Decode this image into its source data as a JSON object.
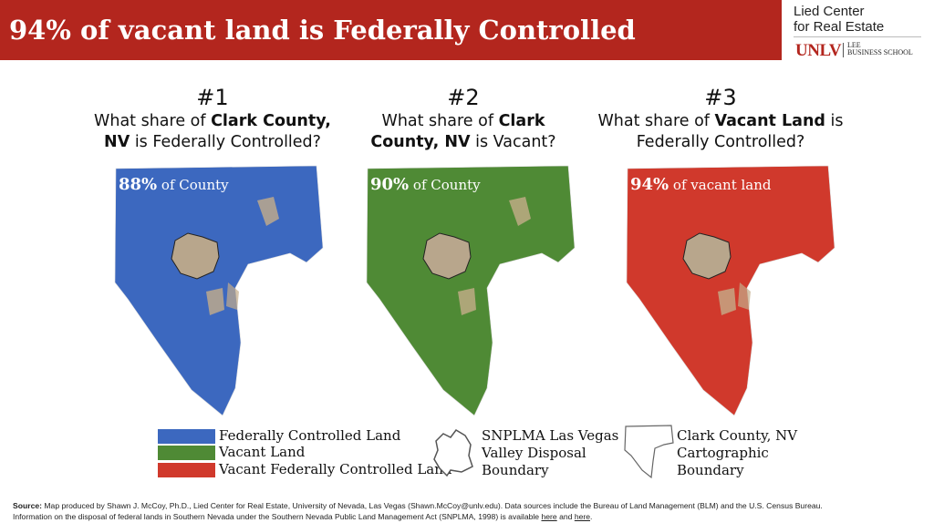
{
  "header": {
    "title": "94% of vacant land is Federally Controlled",
    "logo_line1": "Lied Center",
    "logo_line2": "for Real Estate",
    "logo_unlv": "UNLV",
    "logo_lee": "LEE",
    "logo_school": "BUSINESS SCHOOL"
  },
  "panels": [
    {
      "number": "#1",
      "q_pre": "What share of ",
      "q_bold": "Clark County, NV",
      "q_post": " is Federally Controlled?",
      "pct": "88%",
      "label": " of County",
      "color": "#3c68bf"
    },
    {
      "number": "#2",
      "q_pre": "What share of ",
      "q_bold": "Clark County, NV",
      "q_post": " is Vacant?",
      "pct": "90%",
      "label": " of County",
      "color": "#4f8a35"
    },
    {
      "number": "#3",
      "q_pre": "What share of ",
      "q_bold": "Vacant Land",
      "q_post": " is Federally Controlled?",
      "pct": "94%",
      "label": " of vacant land",
      "color": "#d0392c"
    }
  ],
  "legend": {
    "federal": {
      "label": "Federally Controlled Land",
      "color": "#3c68bf"
    },
    "vacant": {
      "label": "Vacant Land",
      "color": "#4f8a35"
    },
    "vacant_federal": {
      "label": "Vacant Federally Controlled Land",
      "color": "#d0392c"
    },
    "snplma": {
      "line1": "SNPLMA Las Vegas",
      "line2": "Valley Disposal",
      "line3": "Boundary"
    },
    "county": {
      "line1": "Clark County, NV",
      "line2": "Cartographic",
      "line3": "Boundary"
    }
  },
  "source": {
    "label": "Source:",
    "text1": " Map produced by Shawn J. McCoy, Ph.D., Lied Center for Real Estate, University of Nevada, Las Vegas (Shawn.McCoy@unlv.edu). Data sources include the Bureau of Land Management (BLM) and the U.S. Census Bureau.",
    "text2": "Information on the disposal of federal lands in Southern Nevada under the Southern Nevada Public Land Management Act (SNPLMA, 1998) is available ",
    "link1": "here",
    "and": " and ",
    "link2": "here",
    "end": "."
  }
}
